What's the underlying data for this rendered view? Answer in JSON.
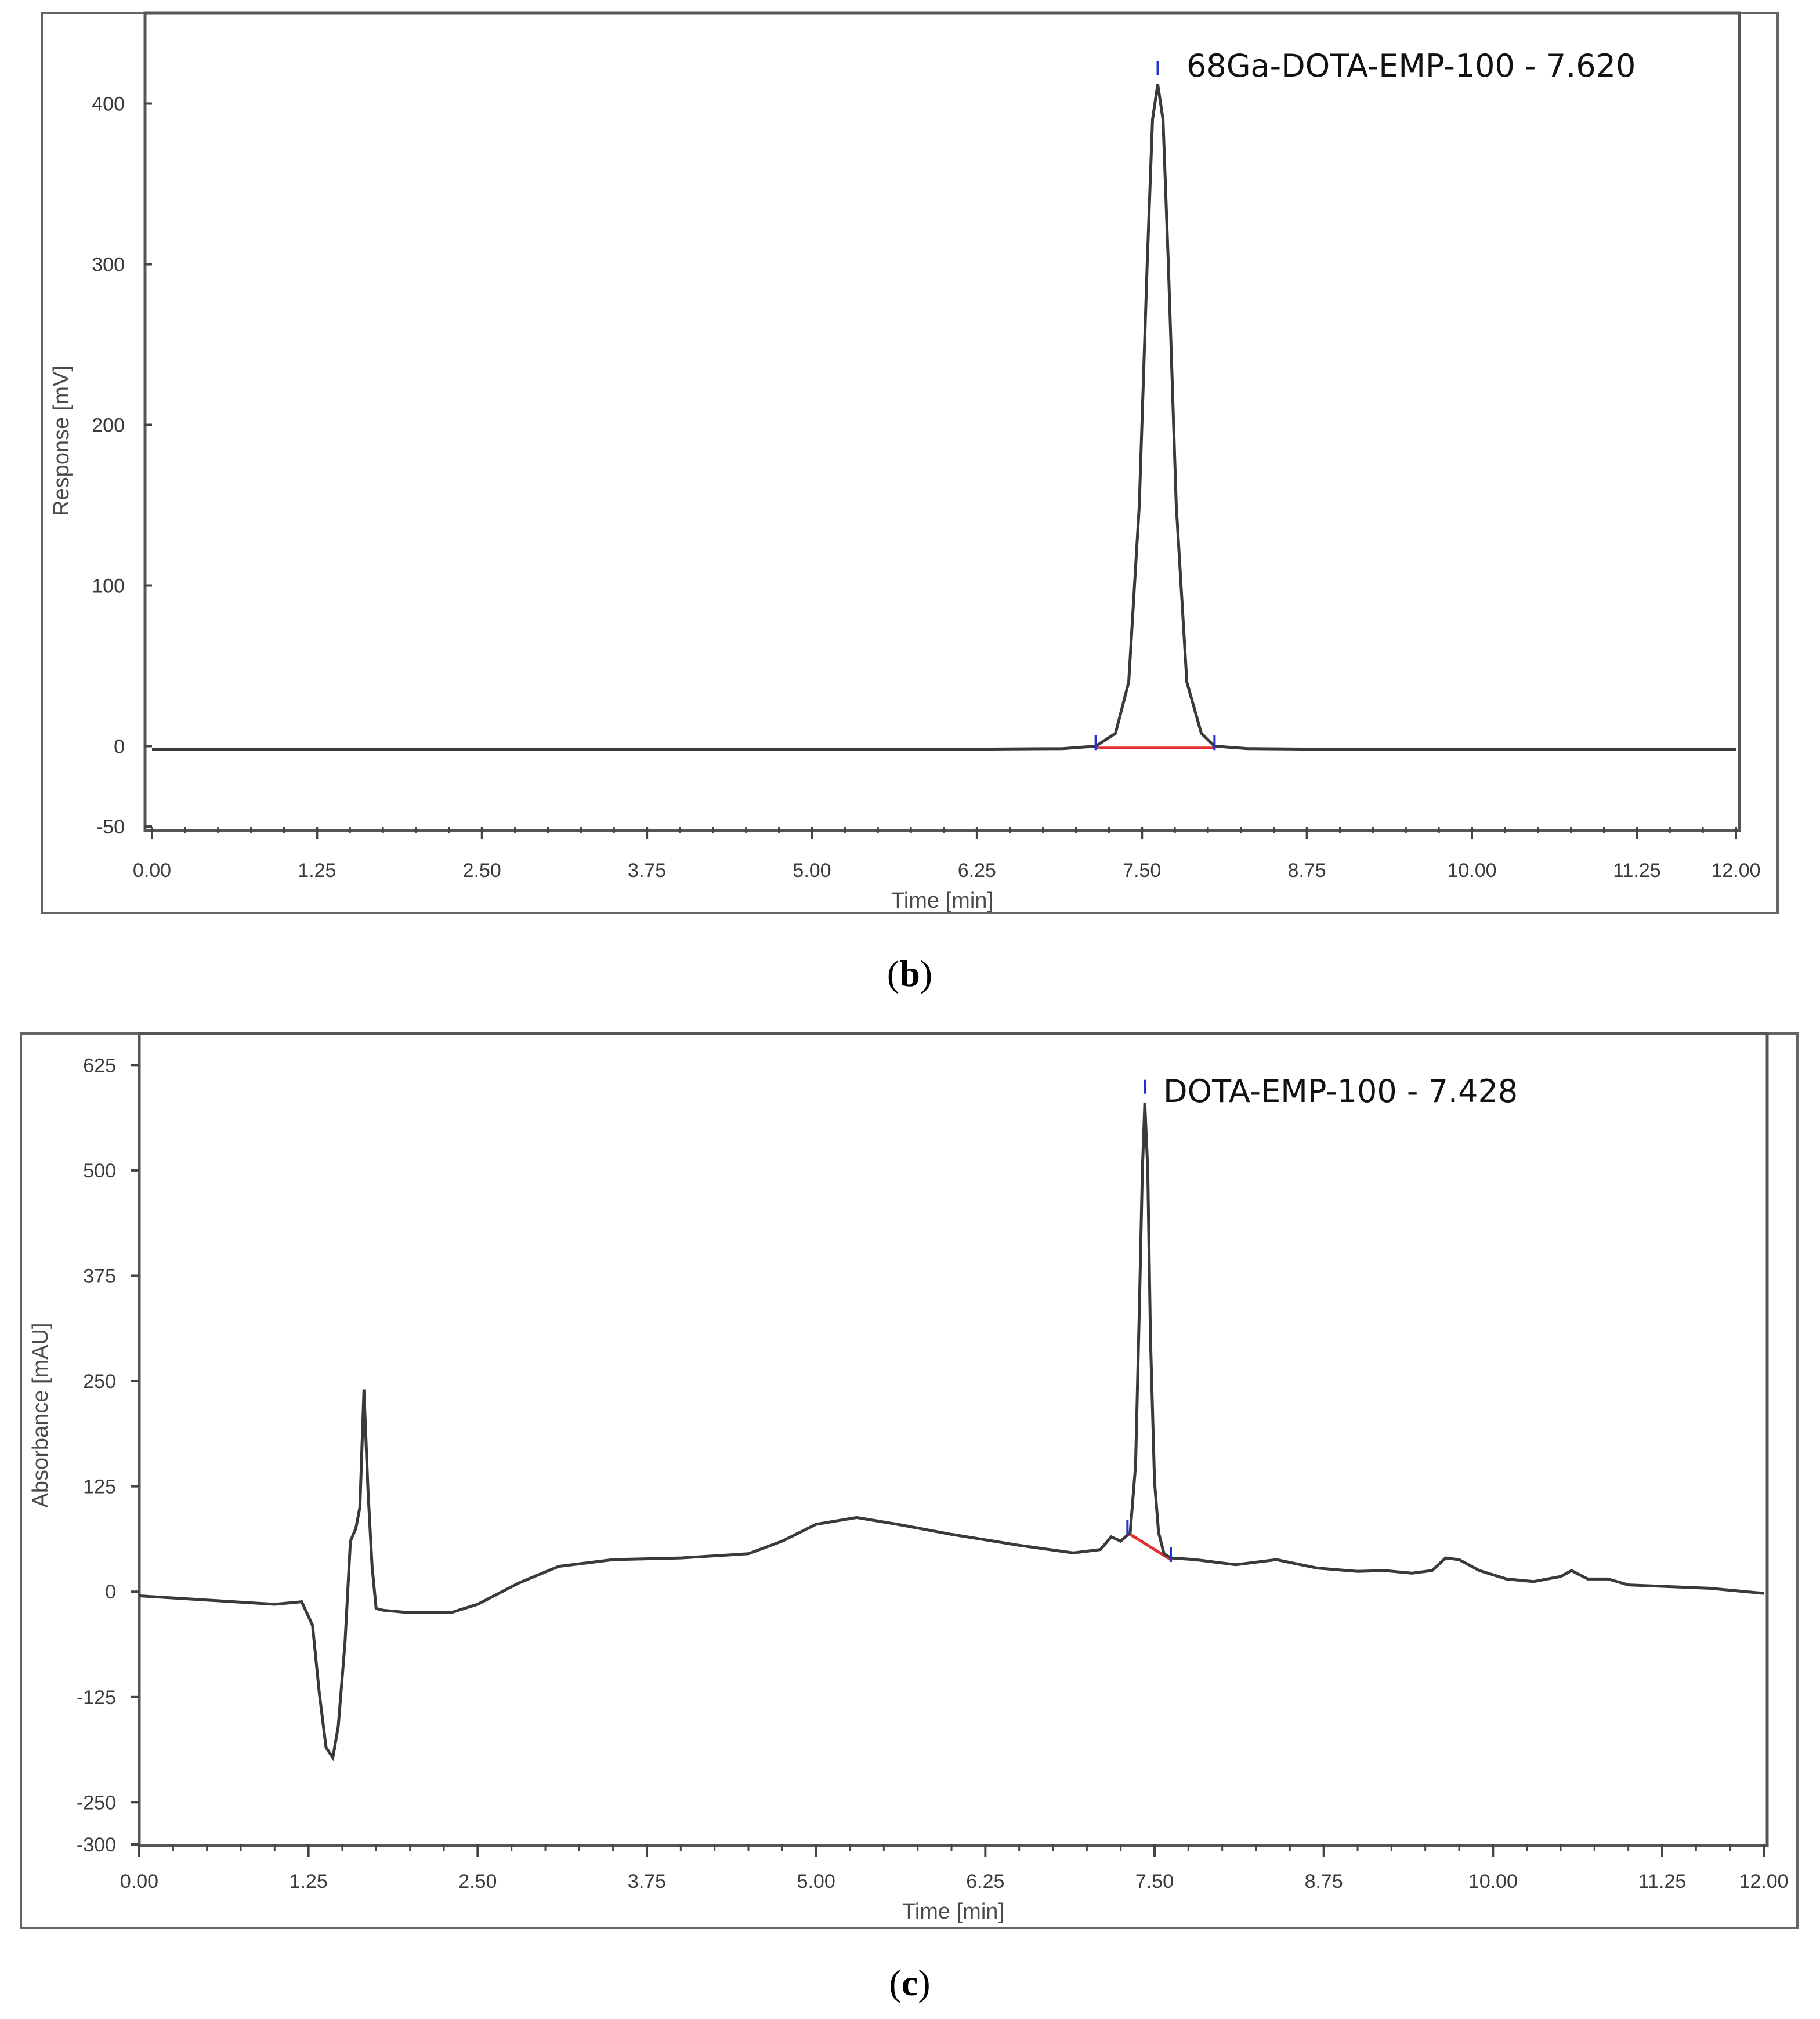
{
  "colors": {
    "trace": "#3a3a3a",
    "baseline": "#e03030",
    "marker": "#2233cc",
    "frame": "#555555"
  },
  "chart_data": [
    {
      "type": "line",
      "panel": "(b)",
      "xlabel": "Time [min]",
      "ylabel": "Response [mV]",
      "xlim": [
        0,
        12
      ],
      "ylim": [
        -50,
        450
      ],
      "xticks": [
        0,
        1.25,
        2.5,
        3.75,
        5,
        6.25,
        7.5,
        8.75,
        10,
        11.25,
        12
      ],
      "xtick_labels": [
        "0.00",
        "1.25",
        "2.50",
        "3.75",
        "5.00",
        "6.25",
        "7.50",
        "8.75",
        "10.00",
        "11.25",
        "12.00"
      ],
      "yticks": [
        -50,
        0,
        100,
        200,
        300,
        400
      ],
      "ytick_labels": [
        "-50",
        "0",
        "100",
        "200",
        "300",
        "400"
      ],
      "peak_annotation": "68Ga-DOTA-EMP-100 - 7.620",
      "peak": {
        "x": 7.62,
        "y": 412
      },
      "integration_baseline": [
        [
          7.15,
          -1
        ],
        [
          8.05,
          -1
        ]
      ],
      "series": [
        {
          "x": [
            0,
            1,
            2,
            3,
            4,
            5,
            6,
            6.9,
            7.15,
            7.3,
            7.4,
            7.48,
            7.54,
            7.58,
            7.62,
            7.66,
            7.7,
            7.76,
            7.84,
            7.95,
            8.05,
            8.3,
            9,
            10,
            11,
            12
          ],
          "y": [
            -2,
            -2,
            -2,
            -2,
            -2,
            -2,
            -2,
            -1.5,
            0,
            8,
            40,
            150,
            300,
            390,
            412,
            390,
            300,
            150,
            40,
            8,
            0,
            -1.5,
            -2,
            -2,
            -2,
            -2
          ]
        }
      ]
    },
    {
      "type": "line",
      "panel": "(c)",
      "xlabel": "Time [min]",
      "ylabel": "Absorbance [mAU]",
      "xlim": [
        0,
        12
      ],
      "ylim": [
        -300,
        650
      ],
      "xticks": [
        0,
        1.25,
        2.5,
        3.75,
        5,
        6.25,
        7.5,
        8.75,
        10,
        11.25,
        12
      ],
      "xtick_labels": [
        "0.00",
        "1.25",
        "2.50",
        "3.75",
        "5.00",
        "6.25",
        "7.50",
        "8.75",
        "10.00",
        "11.25",
        "12.00"
      ],
      "yticks": [
        -300,
        -250,
        -125,
        0,
        125,
        250,
        375,
        500,
        625
      ],
      "ytick_labels": [
        "-300",
        "-250",
        "-125",
        "0",
        "125",
        "250",
        "375",
        "500",
        "625"
      ],
      "peak_annotation": "DOTA-EMP-100 - 7.428",
      "peak": {
        "x": 7.428,
        "y": 580
      },
      "integration_baseline": [
        [
          7.3,
          70
        ],
        [
          7.62,
          38
        ]
      ],
      "series": [
        {
          "x": [
            0,
            0.5,
            1.0,
            1.2,
            1.28,
            1.33,
            1.38,
            1.43,
            1.47,
            1.52,
            1.56,
            1.6,
            1.63,
            1.66,
            1.69,
            1.72,
            1.75,
            1.8,
            2.0,
            2.3,
            2.5,
            2.8,
            3.1,
            3.5,
            4.0,
            4.5,
            4.75,
            5.0,
            5.3,
            5.6,
            6.0,
            6.5,
            6.9,
            7.1,
            7.18,
            7.25,
            7.32,
            7.36,
            7.39,
            7.41,
            7.428,
            7.45,
            7.47,
            7.5,
            7.53,
            7.57,
            7.62,
            7.8,
            8.1,
            8.4,
            8.7,
            9.0,
            9.2,
            9.4,
            9.55,
            9.65,
            9.75,
            9.9,
            10.1,
            10.3,
            10.5,
            10.58,
            10.7,
            10.85,
            11.0,
            11.3,
            11.6,
            12.0
          ],
          "y": [
            -5,
            -10,
            -15,
            -12,
            -40,
            -120,
            -185,
            -197,
            -160,
            -60,
            60,
            75,
            100,
            240,
            120,
            30,
            -20,
            -22,
            -25,
            -25,
            -15,
            10,
            30,
            38,
            40,
            45,
            60,
            80,
            88,
            80,
            68,
            55,
            46,
            50,
            65,
            60,
            70,
            150,
            350,
            500,
            580,
            500,
            300,
            130,
            70,
            45,
            40,
            38,
            32,
            38,
            28,
            24,
            25,
            22,
            25,
            40,
            38,
            25,
            15,
            12,
            18,
            25,
            15,
            15,
            8,
            6,
            4,
            -2
          ]
        }
      ]
    }
  ]
}
